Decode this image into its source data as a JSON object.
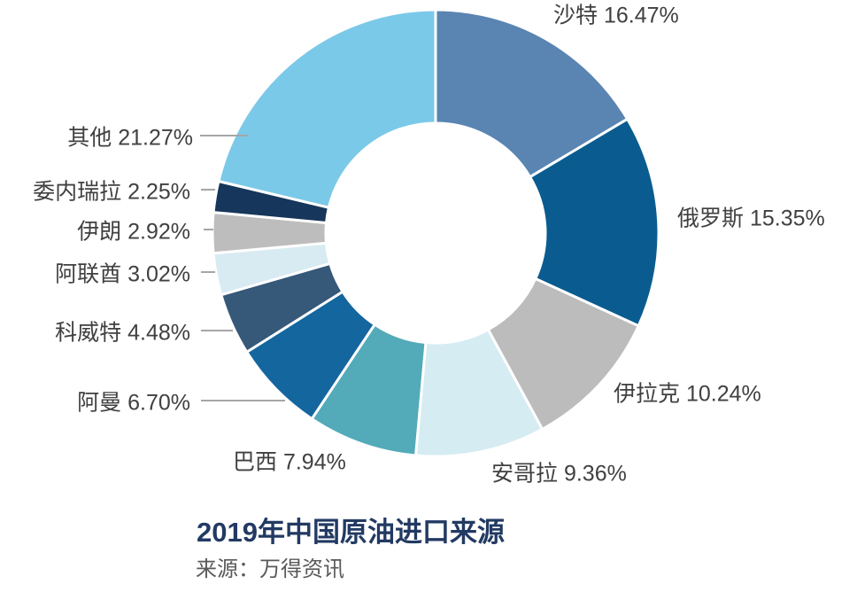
{
  "chart_data": {
    "type": "pie",
    "subtype": "donut",
    "title": "2019年中国原油进口来源",
    "source": "来源：万得资讯",
    "start_angle_deg": 0,
    "direction": "clockwise",
    "label_format": "{label} {value}%",
    "label_color": "#404040",
    "title_color": "#223a63",
    "source_color": "#595959",
    "leader_line_color": "#a6a6a6",
    "slice_edge_color": "#ffffff",
    "slices": [
      {
        "key": "saudi-arabia",
        "label": "沙特",
        "value": 16.47,
        "color": "#5a85b2"
      },
      {
        "key": "russia",
        "label": "俄罗斯",
        "value": 15.35,
        "color": "#0a5c90"
      },
      {
        "key": "iraq",
        "label": "伊拉克",
        "value": 10.24,
        "color": "#bcbcbc"
      },
      {
        "key": "angola",
        "label": "安哥拉",
        "value": 9.36,
        "color": "#d5ecf2"
      },
      {
        "key": "brazil",
        "label": "巴西",
        "value": 7.94,
        "color": "#53aab8"
      },
      {
        "key": "oman",
        "label": "阿曼",
        "value": 6.7,
        "color": "#14669f"
      },
      {
        "key": "kuwait",
        "label": "科威特",
        "value": 4.48,
        "color": "#365879"
      },
      {
        "key": "uae",
        "label": "阿联酋",
        "value": 3.02,
        "color": "#d8ebf2"
      },
      {
        "key": "iran",
        "label": "伊朗",
        "value": 2.92,
        "color": "#bdbdbd"
      },
      {
        "key": "venezuela",
        "label": "委内瑞拉",
        "value": 2.25,
        "color": "#16365b"
      },
      {
        "key": "other",
        "label": "其他",
        "value": 21.27,
        "color": "#7bc9e8"
      }
    ]
  }
}
